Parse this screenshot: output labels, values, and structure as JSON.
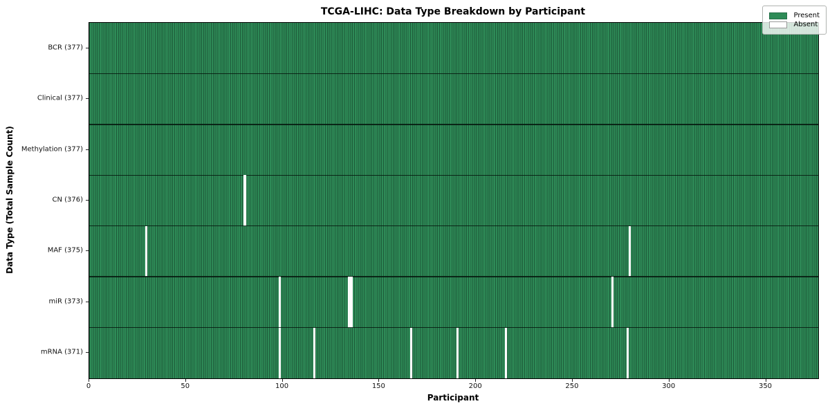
{
  "chart_data": {
    "type": "heatmap",
    "title": "TCGA-LIHC: Data Type Breakdown by Participant",
    "xlabel": "Participant",
    "ylabel": "Data Type (Total Sample Count)",
    "n_participants": 377,
    "x_ticks": [
      0,
      50,
      100,
      150,
      200,
      250,
      300,
      350
    ],
    "x_range": [
      0,
      377
    ],
    "grid": false,
    "present_color": "#2e8b57",
    "cell_edge_color": "#1d5a39",
    "absent_color": "#ffffff",
    "legend": {
      "position": "upper right",
      "present": "Present",
      "absent": "Absent"
    },
    "rows": [
      {
        "data_type": "BCR",
        "label": "BCR (377)",
        "total_samples": 377,
        "absent_participants": []
      },
      {
        "data_type": "Clinical",
        "label": "Clinical (377)",
        "total_samples": 377,
        "absent_participants": []
      },
      {
        "data_type": "Methylation",
        "label": "Methylation (377)",
        "total_samples": 377,
        "absent_participants": []
      },
      {
        "data_type": "CN",
        "label": "CN (376)",
        "total_samples": 376,
        "absent_participants": [
          80
        ]
      },
      {
        "data_type": "MAF",
        "label": "MAF (375)",
        "total_samples": 375,
        "absent_participants": [
          29,
          279
        ]
      },
      {
        "data_type": "miR",
        "label": "miR (373)",
        "total_samples": 373,
        "absent_participants": [
          98,
          134,
          135,
          270
        ]
      },
      {
        "data_type": "mRNA",
        "label": "mRNA (371)",
        "total_samples": 371,
        "absent_participants": [
          98,
          116,
          166,
          190,
          215,
          278
        ]
      }
    ]
  }
}
